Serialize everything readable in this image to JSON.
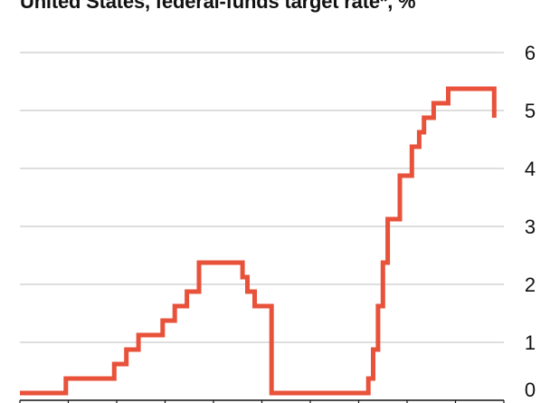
{
  "chart_data": {
    "type": "line",
    "title": "United States, federal-funds target rate*, %",
    "ylim": [
      0,
      6
    ],
    "yticks": [
      "0",
      "1",
      "2",
      "3",
      "4",
      "5",
      "6"
    ],
    "grid": "horizontal",
    "y_axis_side": "right",
    "series_color": "#e8513a",
    "x": [
      2015.0,
      2015.95,
      2016.95,
      2017.2,
      2017.45,
      2017.95,
      2018.2,
      2018.45,
      2018.7,
      2019.6,
      2019.7,
      2019.85,
      2020.2,
      2022.2,
      2022.3,
      2022.4,
      2022.5,
      2022.6,
      2022.85,
      2023.1,
      2023.25,
      2023.35,
      2023.55,
      2023.85,
      2024.7,
      2024.8
    ],
    "values": [
      0.125,
      0.375,
      0.625,
      0.875,
      1.125,
      1.375,
      1.625,
      1.875,
      2.375,
      2.125,
      1.875,
      1.625,
      0.125,
      0.375,
      0.875,
      1.625,
      2.375,
      3.125,
      3.875,
      4.375,
      4.625,
      4.875,
      5.125,
      5.375,
      5.375,
      4.875
    ]
  }
}
